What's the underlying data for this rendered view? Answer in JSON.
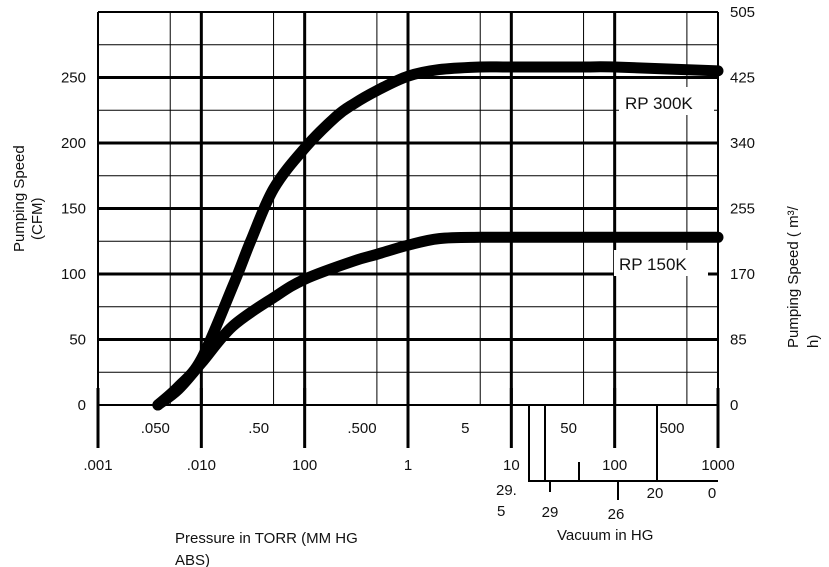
{
  "chart_data": {
    "type": "line",
    "title": "",
    "x_scale": "log",
    "x_unit": "TORR",
    "xlim": [
      0.001,
      1000
    ],
    "ylim": [
      0,
      300
    ],
    "grid": true,
    "y_left_label_line1": "Pumping Speed",
    "y_left_label_line2": "(CFM)",
    "y_right_label_line1": "Pumping Speed ( m³/",
    "y_right_label_line2": "h)",
    "y_left_ticks": [
      "250",
      "200",
      "150",
      "100",
      "50",
      "0"
    ],
    "y_right_ticks": [
      "505",
      "425",
      "340",
      "255",
      "170",
      "85",
      "0"
    ],
    "x_torr_ticks": [
      ".001",
      ".010",
      "100",
      "1",
      "10",
      "100",
      "1000"
    ],
    "x_torr_minor_ticks": [
      ".050",
      ".50",
      ".500",
      "5",
      "50",
      "500"
    ],
    "vacuum_ticks": [
      "29.",
      "29",
      "26",
      "20",
      "0"
    ],
    "vacuum_tick_extra": [
      "5"
    ],
    "x_label_pressure_line1": "Pressure in TORR (MM HG",
    "x_label_pressure_line2": "ABS)",
    "x_label_vacuum": "Vacuum in HG",
    "series": [
      {
        "name": "RP 300K",
        "x": [
          0.0038,
          0.006,
          0.01,
          0.02,
          0.03,
          0.05,
          0.1,
          0.2,
          0.3,
          0.5,
          1,
          2,
          5,
          10,
          50,
          100,
          1000
        ],
        "y": [
          0,
          14,
          35,
          90,
          125,
          165,
          196,
          220,
          230,
          240,
          251,
          256,
          258,
          258,
          258,
          258,
          255
        ]
      },
      {
        "name": "RP 150K",
        "x": [
          0.0038,
          0.006,
          0.01,
          0.02,
          0.05,
          0.1,
          0.3,
          0.5,
          1,
          2,
          5,
          10,
          100,
          1000
        ],
        "y": [
          0,
          12,
          32,
          60,
          82,
          96,
          110,
          115,
          122,
          127,
          128,
          128,
          128,
          128
        ]
      }
    ]
  }
}
